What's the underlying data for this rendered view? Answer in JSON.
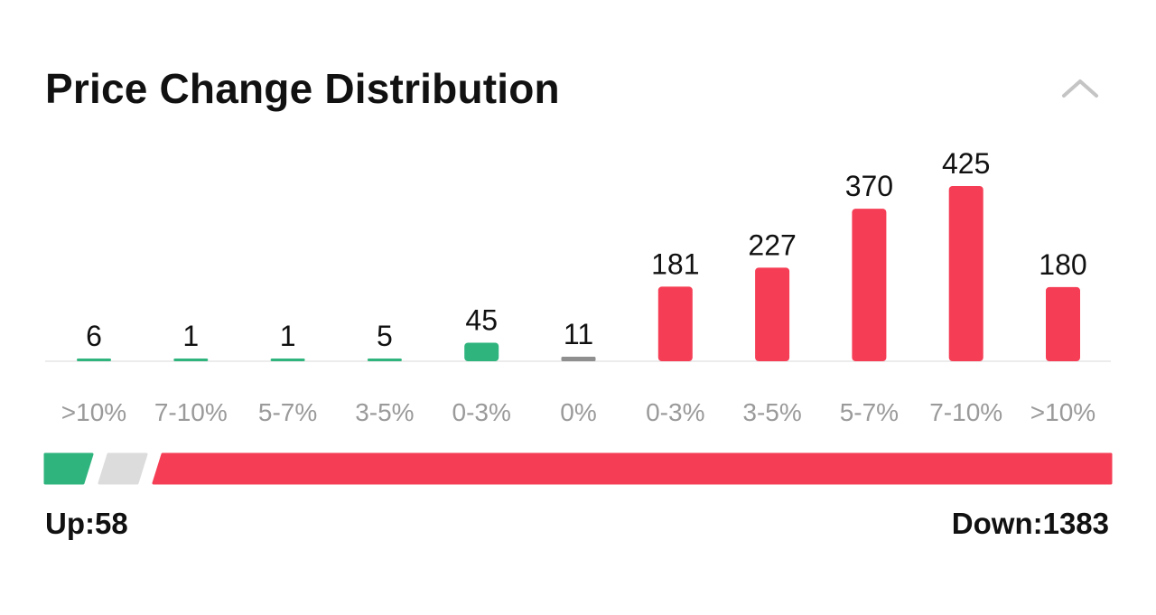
{
  "header": {
    "title": "Price Change Distribution",
    "collapse_icon": "chevron-up-icon"
  },
  "colors": {
    "up": "#2fb47e",
    "flat": "#8f8f8f",
    "down": "#f53e55",
    "neutral_bar": "#dcdcdc",
    "baseline": "#e6e6e6"
  },
  "chart_data": {
    "type": "bar",
    "title": "Price Change Distribution",
    "xlabel": "",
    "ylabel": "",
    "categories": [
      ">10%",
      "7-10%",
      "5-7%",
      "3-5%",
      "0-3%",
      "0%",
      "0-3%",
      "3-5%",
      "5-7%",
      "7-10%",
      ">10%"
    ],
    "values": [
      6,
      1,
      1,
      5,
      45,
      11,
      181,
      227,
      370,
      425,
      180
    ],
    "directions": [
      "up",
      "up",
      "up",
      "up",
      "up",
      "flat",
      "down",
      "down",
      "down",
      "down",
      "down"
    ],
    "ylim": [
      0,
      425
    ],
    "grid": false
  },
  "summary": {
    "up_label": "Up:58",
    "down_label": "Down:1383",
    "up_count": 58,
    "flat_count": 11,
    "down_count": 1383
  }
}
